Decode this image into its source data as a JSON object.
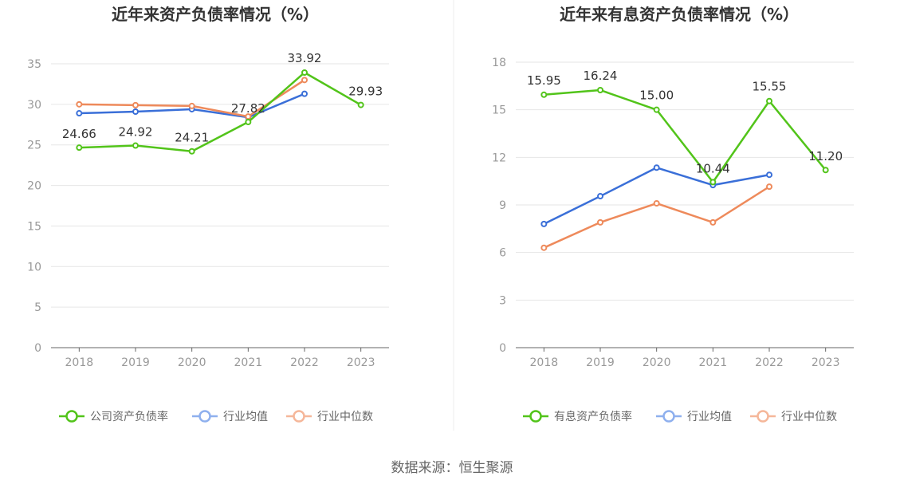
{
  "source": "数据来源：恒生聚源",
  "colors": {
    "primary": "#52c41a",
    "avg": "#3a6fd8",
    "median": "#ee8a5b",
    "grid": "#e6e6e6",
    "axis": "#666666"
  },
  "chart_data": [
    {
      "type": "line",
      "title": "近年来资产负债率情况（%）",
      "categories": [
        "2018",
        "2019",
        "2020",
        "2021",
        "2022",
        "2023"
      ],
      "ylim": [
        0,
        35
      ],
      "yticks": [
        0,
        5,
        10,
        15,
        20,
        25,
        30,
        35
      ],
      "grid": true,
      "legend_position": "bottom",
      "series": [
        {
          "name": "公司资产负债率",
          "color": "#52c41a",
          "values": [
            24.66,
            24.92,
            24.21,
            27.82,
            33.92,
            29.93
          ],
          "labels": [
            "24.66",
            "24.92",
            "24.21",
            "27.82",
            "33.92",
            "29.93"
          ]
        },
        {
          "name": "行业均值",
          "color": "#3a6fd8",
          "values": [
            28.9,
            29.1,
            29.4,
            28.4,
            31.3,
            null
          ]
        },
        {
          "name": "行业中位数",
          "color": "#ee8a5b",
          "values": [
            30.0,
            29.9,
            29.8,
            28.5,
            33.0,
            null
          ]
        }
      ]
    },
    {
      "type": "line",
      "title": "近年来有息资产负债率情况（%）",
      "categories": [
        "2018",
        "2019",
        "2020",
        "2021",
        "2022",
        "2023"
      ],
      "ylim": [
        0,
        18
      ],
      "yticks": [
        0,
        3,
        6,
        9,
        12,
        15,
        18
      ],
      "grid": true,
      "legend_position": "bottom",
      "series": [
        {
          "name": "有息资产负债率",
          "color": "#52c41a",
          "values": [
            15.95,
            16.24,
            15.0,
            10.44,
            15.55,
            11.2
          ],
          "labels": [
            "15.95",
            "16.24",
            "15.00",
            "10.44",
            "15.55",
            "11.20"
          ]
        },
        {
          "name": "行业均值",
          "color": "#3a6fd8",
          "values": [
            7.8,
            9.55,
            11.35,
            10.25,
            10.9,
            null
          ]
        },
        {
          "name": "行业中位数",
          "color": "#ee8a5b",
          "values": [
            6.3,
            7.9,
            9.1,
            7.9,
            10.15,
            null
          ]
        }
      ]
    }
  ]
}
